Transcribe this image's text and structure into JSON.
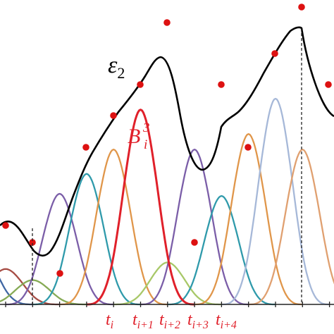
{
  "labels": {
    "curve": "ε",
    "curve_sub": "2",
    "basis": "B",
    "basis_sup": "3",
    "basis_sub": "i",
    "knots": [
      {
        "t": "t",
        "sub": "i"
      },
      {
        "t": "t",
        "sub": "i+1"
      },
      {
        "t": "t",
        "sub": "i+2"
      },
      {
        "t": "t",
        "sub": "i+3"
      },
      {
        "t": "t",
        "sub": "i+4"
      }
    ]
  },
  "colors": {
    "curve": "#000000",
    "highlight": "#e0202a",
    "control_point": "#dd1111",
    "axis": "#222222"
  },
  "basis_functions": [
    {
      "color": "#3f66a3",
      "peak": 0.26,
      "highlight": false
    },
    {
      "color": "#a64c44",
      "peak": 0.16,
      "highlight": false
    },
    {
      "color": "#86aa55",
      "peak": 0.11,
      "highlight": false
    },
    {
      "color": "#7b5ea8",
      "peak": 0.5,
      "highlight": false
    },
    {
      "color": "#2f9aab",
      "peak": 0.59,
      "highlight": false
    },
    {
      "color": "#e0964a",
      "peak": 0.7,
      "highlight": false
    },
    {
      "color": "#e0202a",
      "peak": 0.88,
      "highlight": true
    },
    {
      "color": "#a8c868",
      "peak": 0.19,
      "highlight": false
    },
    {
      "color": "#7b5ea8",
      "peak": 0.7,
      "highlight": false
    },
    {
      "color": "#2f9aab",
      "peak": 0.49,
      "highlight": false
    },
    {
      "color": "#e0964a",
      "peak": 0.77,
      "highlight": false
    },
    {
      "color": "#a6b8d8",
      "peak": 0.93,
      "highlight": false
    },
    {
      "color": "#e0a070",
      "peak": 0.7,
      "highlight": false
    }
  ]
}
